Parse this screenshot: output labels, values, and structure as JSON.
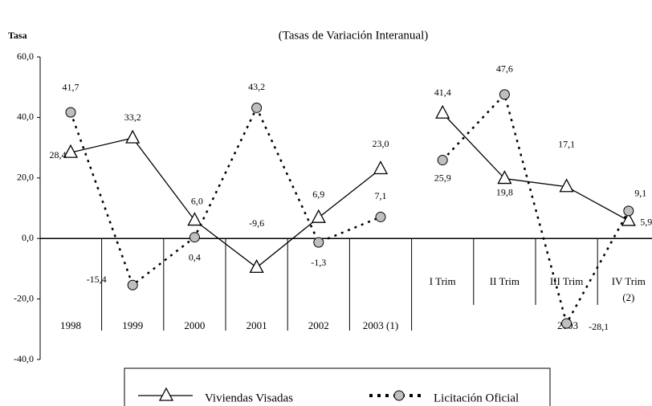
{
  "chart_data": [
    {
      "type": "line",
      "title": "(Tasas de Variación Interanual)",
      "ylabel": "Tasa",
      "categories": [
        "1998",
        "1999",
        "2000",
        "2001",
        "2002",
        "2003 (1)"
      ],
      "ylim": [
        -40,
        60
      ],
      "yticks": [
        {
          "value": -40,
          "label": "-40,0"
        },
        {
          "value": -20,
          "label": "-20,0"
        },
        {
          "value": 0,
          "label": "0,0"
        },
        {
          "value": 20,
          "label": "20,0"
        },
        {
          "value": 40,
          "label": "40,0"
        },
        {
          "value": 60,
          "label": "60,0"
        }
      ],
      "legend": "bottom",
      "series": [
        {
          "name": "Viviendas Visadas",
          "color": "#000000",
          "marker": "triangle",
          "line": "solid",
          "values": [
            28.4,
            33.2,
            6.0,
            -9.6,
            6.9,
            23.0
          ],
          "value_labels": [
            "28,4",
            "33,2",
            "6,0",
            "-9,6",
            "6,9",
            "23,0"
          ]
        },
        {
          "name": "Licitación Oficial",
          "color": "#000000",
          "marker": "circle",
          "marker_color": "#bfbfbf",
          "line": "dotted",
          "values": [
            41.7,
            -15.4,
            0.4,
            43.2,
            -1.3,
            7.1
          ],
          "value_labels": [
            "41,7",
            "-15,4",
            "0,4",
            "43,2",
            "-1,3",
            "7,1"
          ]
        }
      ]
    },
    {
      "type": "line",
      "xlabel": "2003",
      "categories": [
        "I Trim",
        "II Trim",
        "III Trim",
        "IV Trim (2)"
      ],
      "series": [
        {
          "values": [
            41.4,
            19.8,
            17.1,
            5.9
          ],
          "value_labels": [
            "41,4",
            "19,8",
            "17,1",
            "5,9"
          ]
        },
        {
          "values": [
            25.9,
            47.6,
            -28.1,
            9.1
          ],
          "value_labels": [
            "25,9",
            "47,6",
            "-28,1",
            "9,1"
          ]
        }
      ]
    }
  ]
}
